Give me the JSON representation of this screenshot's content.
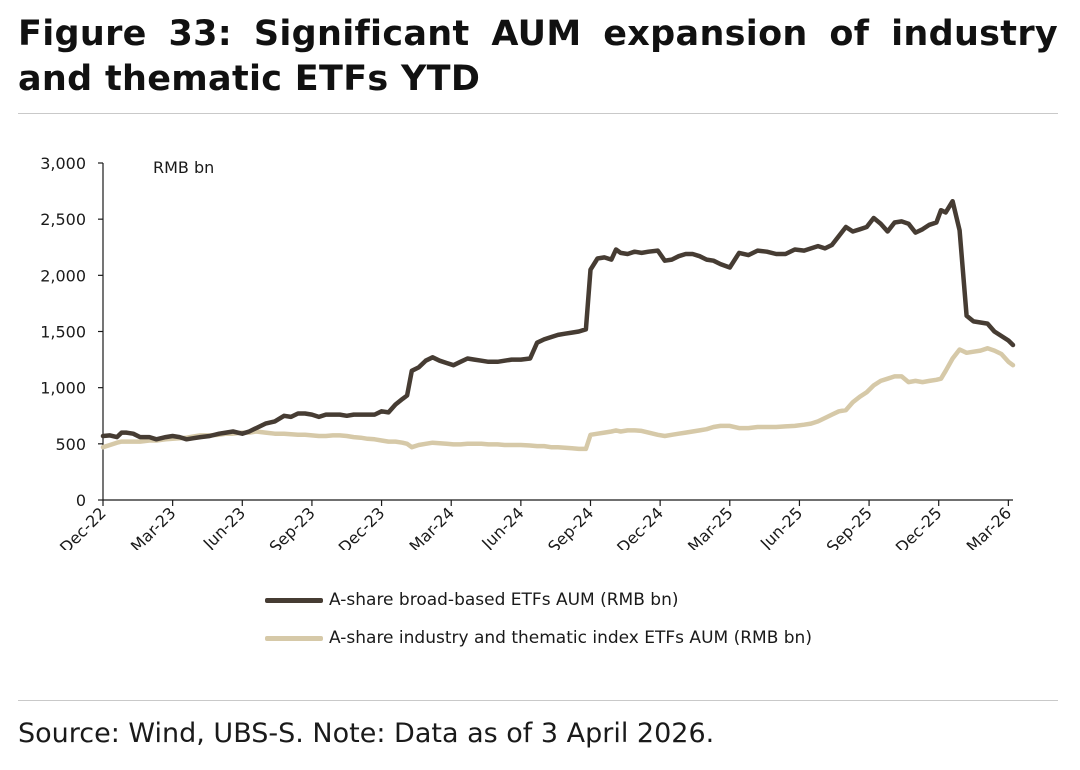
{
  "title": "Figure 33: Significant AUM expansion of industry and thematic ETFs YTD",
  "source": "Source: Wind, UBS-S. Note: Data as of 3 April 2026.",
  "chart_data": {
    "type": "line",
    "unit_label": "RMB bn",
    "ylim": [
      0,
      3000
    ],
    "yticks": [
      0,
      500,
      1000,
      1500,
      2000,
      2500,
      3000
    ],
    "ytick_labels": [
      "0",
      "500",
      "1,000",
      "1,500",
      "2,000",
      "2,500",
      "3,000"
    ],
    "xlim": [
      0,
      39.2
    ],
    "x_unit": "months since Dec-22",
    "xtick_labels": [
      "Dec-22",
      "Mar-23",
      "Jun-23",
      "Sep-23",
      "Dec-23",
      "Mar-24",
      "Jun-24",
      "Sep-24",
      "Dec-24",
      "Mar-25",
      "Jun-25",
      "Sep-25",
      "Dec-25",
      "Mar-26"
    ],
    "xtick_positions": [
      0,
      3,
      6,
      9,
      12,
      15,
      18,
      21,
      24,
      27,
      30,
      33,
      36,
      39
    ],
    "series": [
      {
        "name": "A-share broad-based ETFs AUM (RMB bn)",
        "color": "#463c33",
        "x": [
          0,
          0.3,
          0.6,
          0.8,
          1.0,
          1.3,
          1.6,
          2.0,
          2.3,
          2.7,
          3.0,
          3.3,
          3.6,
          3.9,
          4.2,
          4.6,
          5.0,
          5.3,
          5.6,
          6.0,
          6.3,
          6.6,
          7.0,
          7.4,
          7.8,
          8.1,
          8.4,
          8.7,
          9.0,
          9.3,
          9.6,
          9.9,
          10.2,
          10.5,
          10.8,
          11.1,
          11.4,
          11.7,
          12.0,
          12.3,
          12.6,
          12.9,
          13.1,
          13.3,
          13.6,
          13.9,
          14.2,
          14.5,
          14.8,
          15.1,
          15.4,
          15.7,
          16.0,
          16.3,
          16.6,
          17.0,
          17.3,
          17.6,
          18.0,
          18.4,
          18.7,
          19.0,
          19.3,
          19.6,
          19.9,
          20.2,
          20.5,
          20.8,
          21.0,
          21.3,
          21.6,
          21.9,
          22.1,
          22.3,
          22.6,
          22.9,
          23.2,
          23.5,
          23.9,
          24.2,
          24.5,
          24.8,
          25.1,
          25.4,
          25.7,
          26.0,
          26.3,
          26.6,
          27.0,
          27.4,
          27.8,
          28.2,
          28.6,
          29.0,
          29.4,
          29.8,
          30.2,
          30.5,
          30.8,
          31.1,
          31.4,
          31.7,
          32.0,
          32.3,
          32.6,
          32.9,
          33.2,
          33.5,
          33.8,
          34.1,
          34.4,
          34.7,
          35.0,
          35.3,
          35.6,
          35.9,
          36.1,
          36.3,
          36.6,
          36.9,
          37.2,
          37.5,
          37.8,
          38.1,
          38.4,
          38.7,
          39.0,
          39.2
        ],
        "values": [
          570,
          575,
          560,
          600,
          600,
          590,
          560,
          560,
          540,
          560,
          570,
          560,
          540,
          550,
          560,
          570,
          590,
          600,
          610,
          590,
          610,
          640,
          680,
          700,
          750,
          740,
          770,
          770,
          760,
          740,
          760,
          760,
          760,
          750,
          760,
          760,
          760,
          760,
          790,
          780,
          850,
          900,
          930,
          1150,
          1180,
          1240,
          1270,
          1240,
          1220,
          1200,
          1230,
          1260,
          1250,
          1240,
          1230,
          1230,
          1240,
          1250,
          1250,
          1260,
          1400,
          1430,
          1450,
          1470,
          1480,
          1490,
          1500,
          1520,
          2050,
          2150,
          2160,
          2140,
          2230,
          2200,
          2190,
          2210,
          2200,
          2210,
          2220,
          2130,
          2140,
          2170,
          2190,
          2190,
          2170,
          2140,
          2130,
          2100,
          2070,
          2200,
          2180,
          2220,
          2210,
          2190,
          2190,
          2230,
          2220,
          2240,
          2260,
          2240,
          2270,
          2350,
          2430,
          2390,
          2410,
          2430,
          2510,
          2460,
          2390,
          2470,
          2480,
          2460,
          2380,
          2410,
          2450,
          2470,
          2580,
          2560,
          2660,
          2400,
          1640,
          1590,
          1580,
          1570,
          1500,
          1460,
          1420,
          1380
        ]
      },
      {
        "name": "A-share industry and thematic index ETFs AUM (RMB bn)",
        "color": "#d6c9a8",
        "x": [
          0,
          0.3,
          0.6,
          0.8,
          1.0,
          1.3,
          1.6,
          2.0,
          2.3,
          2.7,
          3.0,
          3.3,
          3.6,
          3.9,
          4.2,
          4.6,
          5.0,
          5.3,
          5.6,
          6.0,
          6.3,
          6.6,
          7.0,
          7.4,
          7.8,
          8.1,
          8.4,
          8.7,
          9.0,
          9.3,
          9.6,
          9.9,
          10.2,
          10.5,
          10.8,
          11.1,
          11.4,
          11.7,
          12.0,
          12.3,
          12.6,
          12.9,
          13.1,
          13.3,
          13.6,
          13.9,
          14.2,
          14.5,
          14.8,
          15.1,
          15.4,
          15.7,
          16.0,
          16.3,
          16.6,
          17.0,
          17.3,
          17.6,
          18.0,
          18.4,
          18.7,
          19.0,
          19.3,
          19.6,
          19.9,
          20.2,
          20.5,
          20.8,
          21.0,
          21.3,
          21.6,
          21.9,
          22.1,
          22.3,
          22.6,
          22.9,
          23.2,
          23.5,
          23.9,
          24.2,
          24.5,
          24.8,
          25.1,
          25.4,
          25.7,
          26.0,
          26.3,
          26.6,
          27.0,
          27.4,
          27.8,
          28.2,
          28.6,
          29.0,
          29.4,
          29.8,
          30.2,
          30.5,
          30.8,
          31.1,
          31.4,
          31.7,
          32.0,
          32.3,
          32.6,
          32.9,
          33.2,
          33.5,
          33.8,
          34.1,
          34.4,
          34.7,
          35.0,
          35.3,
          35.6,
          35.9,
          36.1,
          36.3,
          36.6,
          36.9,
          37.2,
          37.5,
          37.8,
          38.1,
          38.4,
          38.7,
          39.0,
          39.2
        ],
        "values": [
          470,
          490,
          510,
          520,
          520,
          520,
          520,
          530,
          530,
          540,
          545,
          550,
          555,
          565,
          575,
          575,
          580,
          590,
          590,
          600,
          600,
          610,
          600,
          590,
          590,
          585,
          580,
          580,
          575,
          570,
          570,
          575,
          575,
          570,
          560,
          555,
          545,
          540,
          530,
          520,
          520,
          510,
          500,
          470,
          490,
          500,
          510,
          505,
          500,
          495,
          495,
          500,
          500,
          500,
          495,
          495,
          490,
          490,
          490,
          485,
          480,
          480,
          470,
          470,
          465,
          460,
          455,
          455,
          580,
          590,
          600,
          610,
          620,
          610,
          620,
          620,
          615,
          600,
          580,
          570,
          580,
          590,
          600,
          610,
          620,
          630,
          650,
          660,
          660,
          640,
          640,
          650,
          650,
          650,
          655,
          660,
          670,
          680,
          700,
          730,
          760,
          790,
          800,
          870,
          920,
          960,
          1020,
          1060,
          1080,
          1100,
          1100,
          1050,
          1060,
          1050,
          1060,
          1070,
          1080,
          1150,
          1260,
          1340,
          1310,
          1320,
          1330,
          1350,
          1330,
          1300,
          1230,
          1200
        ]
      }
    ]
  }
}
